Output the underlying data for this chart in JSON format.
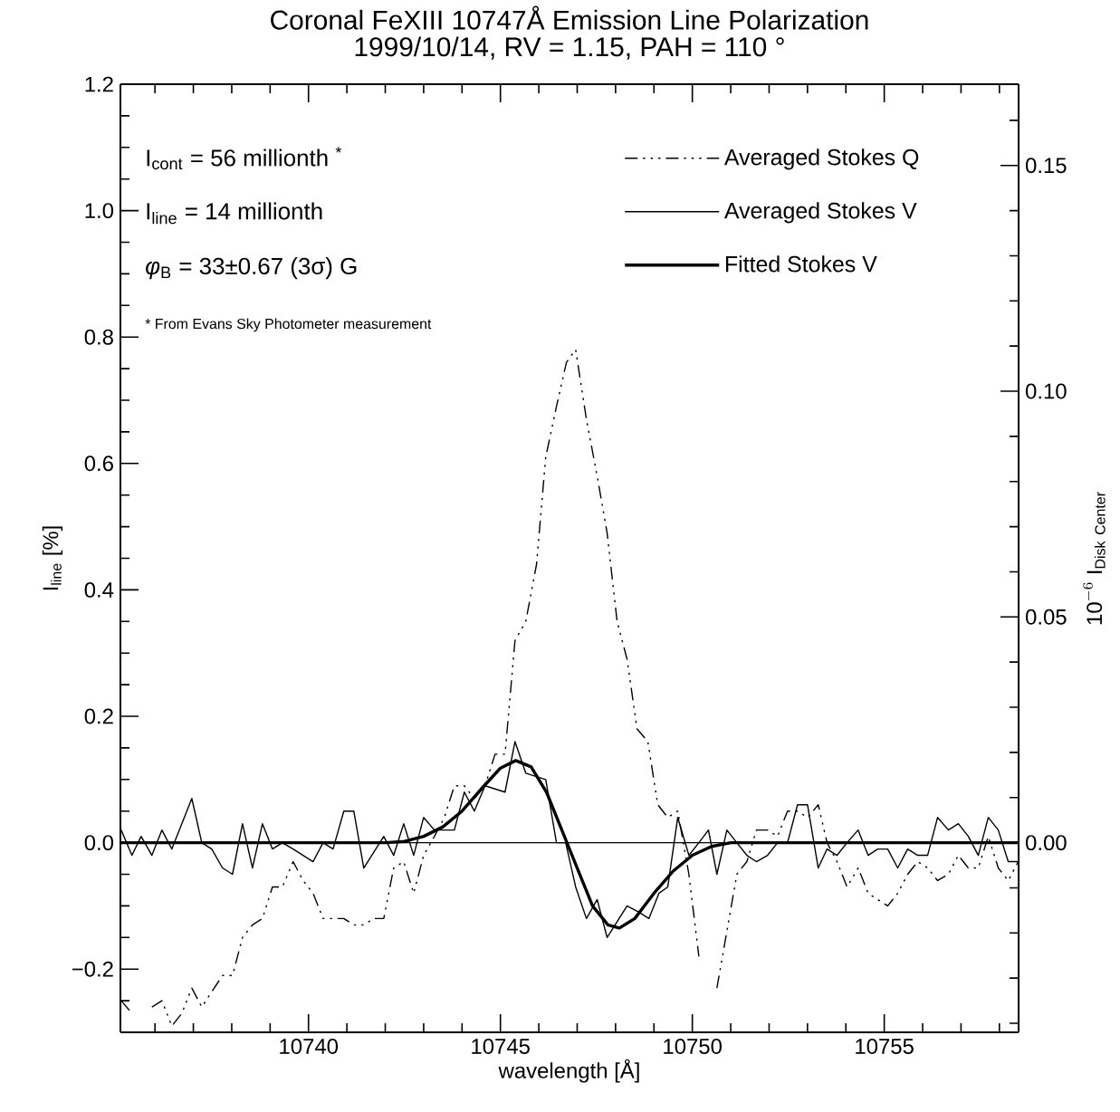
{
  "chart_data": {
    "type": "line",
    "title": "Coronal FeXIII 10747Å Emission Line Polarization",
    "subtitle": "1999/10/14, RV = 1.15, PAH = 110 °",
    "xlabel": "wavelength [Å]",
    "ylabel": "I$_{line}$ [%]",
    "y2label": "\\mathrm{10}^{-6}\\ \\mathrm{I}_{\\mathrm{Disk\\ Center}}",
    "annotations": [
      "I$_{cont}$ = 56 millionth $^{*}$",
      "I$_{line}$ = 14 millionth",
      "*φ*$_{B}$ = 33±0.67 (3σ) G",
      "* From Evans Sky Photometer measurement"
    ],
    "xlim": [
      10735.1,
      10758.5
    ],
    "xticks": [
      10740,
      10745,
      10750,
      10755,
      {
        "value": 10736,
        "label": null
      },
      {
        "value": 10737,
        "label": null
      },
      {
        "value": 10738,
        "label": null
      },
      {
        "value": 10739,
        "label": null
      },
      {
        "value": 10741,
        "label": null
      },
      {
        "value": 10742,
        "label": null
      },
      {
        "value": 10743,
        "label": null
      },
      {
        "value": 10744,
        "label": null
      },
      {
        "value": 10746,
        "label": null
      },
      {
        "value": 10747,
        "label": null
      },
      {
        "value": 10748,
        "label": null
      },
      {
        "value": 10749,
        "label": null
      },
      {
        "value": 10751,
        "label": null
      },
      {
        "value": 10752,
        "label": null
      },
      {
        "value": 10753,
        "label": null
      },
      {
        "value": 10754,
        "label": null
      },
      {
        "value": 10756,
        "label": null
      },
      {
        "value": 10757,
        "label": null
      },
      {
        "value": 10758,
        "label": null
      }
    ],
    "ylim": [
      -0.3,
      1.2
    ],
    "yticks": [
      {
        "value": -0.2,
        "label": "−0.2"
      },
      {
        "value": 0,
        "label": "0.0"
      },
      {
        "value": 0.2,
        "label": "0.2"
      },
      {
        "value": 0.4,
        "label": "0.4"
      },
      {
        "value": 0.6,
        "label": "0.6"
      },
      {
        "value": 0.8,
        "label": "0.8"
      },
      {
        "value": 1.0,
        "label": "1.0"
      },
      {
        "value": 1.2,
        "label": "1.2"
      },
      {
        "value": -0.25,
        "label": null
      },
      {
        "value": -0.15,
        "label": null
      },
      {
        "value": -0.1,
        "label": null
      },
      {
        "value": -0.05,
        "label": null
      },
      {
        "value": 0.05,
        "label": null
      },
      {
        "value": 0.1,
        "label": null
      },
      {
        "value": 0.15,
        "label": null
      },
      {
        "value": 0.25,
        "label": null
      },
      {
        "value": 0.3,
        "label": null
      },
      {
        "value": 0.35,
        "label": null
      },
      {
        "value": 0.45,
        "label": null
      },
      {
        "value": 0.5,
        "label": null
      },
      {
        "value": 0.55,
        "label": null
      },
      {
        "value": 0.65,
        "label": null
      },
      {
        "value": 0.7,
        "label": null
      },
      {
        "value": 0.75,
        "label": null
      },
      {
        "value": 0.85,
        "label": null
      },
      {
        "value": 0.9,
        "label": null
      },
      {
        "value": 0.95,
        "label": null
      },
      {
        "value": 1.05,
        "label": null
      },
      {
        "value": 1.1,
        "label": null
      },
      {
        "value": 1.15,
        "label": null
      }
    ],
    "y2lim": [
      -0.042,
      0.168
    ],
    "y2ticks": [
      {
        "value": 0,
        "label": "0.00"
      },
      {
        "value": 0.05,
        "label": "0.05"
      },
      {
        "value": 0.1,
        "label": "0.10"
      },
      {
        "value": 0.15,
        "label": "0.15"
      },
      {
        "value": -0.04,
        "label": null
      },
      {
        "value": -0.03,
        "label": null
      },
      {
        "value": -0.02,
        "label": null
      },
      {
        "value": -0.01,
        "label": null
      },
      {
        "value": 0.01,
        "label": null
      },
      {
        "value": 0.02,
        "label": null
      },
      {
        "value": 0.03,
        "label": null
      },
      {
        "value": 0.04,
        "label": null
      },
      {
        "value": 0.06,
        "label": null
      },
      {
        "value": 0.07,
        "label": null
      },
      {
        "value": 0.08,
        "label": null
      },
      {
        "value": 0.09,
        "label": null
      },
      {
        "value": 0.11,
        "label": null
      },
      {
        "value": 0.12,
        "label": null
      },
      {
        "value": 0.13,
        "label": null
      },
      {
        "value": 0.14,
        "label": null
      },
      {
        "value": 0.16,
        "label": null
      }
    ],
    "ref_lines": [
      {
        "axis": "y",
        "value": 0,
        "color": "#000000",
        "line_style": "solid"
      }
    ],
    "legend": "top right",
    "grid": false,
    "series": [
      {
        "name": "Averaged Stokes Q",
        "color": "#000000",
        "line_style": "dashed",
        "x": [
          10735.12,
          10735.4,
          10735.59,
          10735.92,
          10736.18,
          10736.44,
          10736.7,
          10736.96,
          10737.22,
          10737.76,
          10738.02,
          10738.28,
          10738.54,
          10738.8,
          10739.06,
          10739.32,
          10739.6,
          10739.86,
          10740.12,
          10740.38,
          10740.64,
          10740.92,
          10741.18,
          10741.44,
          10741.7,
          10741.96,
          10742.22,
          10742.48,
          10742.74,
          10743.0,
          10743.28,
          10743.54,
          10743.8,
          10744.06,
          10744.32,
          10744.6,
          10744.86,
          10745.12,
          10745.38,
          10745.66,
          10745.94,
          10746.18,
          10746.46,
          10746.72,
          10746.96,
          10747.24,
          10747.52,
          10747.78,
          10748.04,
          10748.3,
          10748.56,
          10748.84,
          10749.1,
          10749.36,
          10749.62,
          10749.91,
          10750.17,
          10750.42,
          10750.64,
          10750.9,
          10751.16,
          10751.42,
          10751.67,
          10751.96,
          10752.22,
          10752.48,
          10752.74,
          10753.0,
          10753.28,
          10753.51,
          10753.77,
          10754.03,
          10754.32,
          10754.58,
          10754.83,
          10755.09,
          10755.35,
          10755.61,
          10755.87,
          10756.13,
          10756.39,
          10756.67,
          10756.93,
          10757.19,
          10757.45,
          10757.71,
          10757.97,
          10758.23,
          10758.49
        ],
        "values": [
          -0.25,
          -0.27,
          null,
          -0.26,
          -0.25,
          -0.29,
          -0.27,
          -0.23,
          -0.26,
          -0.21,
          -0.21,
          -0.15,
          -0.13,
          -0.12,
          -0.07,
          -0.07,
          -0.03,
          -0.06,
          -0.08,
          -0.12,
          -0.12,
          -0.12,
          -0.13,
          -0.13,
          -0.12,
          -0.12,
          -0.04,
          -0.03,
          -0.08,
          -0.02,
          0.01,
          0.04,
          0.09,
          0.09,
          0.07,
          0.09,
          0.14,
          0.14,
          0.32,
          0.35,
          0.44,
          0.61,
          0.69,
          0.76,
          0.78,
          0.67,
          0.58,
          0.49,
          0.35,
          0.29,
          0.18,
          0.16,
          0.06,
          0.04,
          0.05,
          -0.05,
          -0.18,
          null,
          -0.23,
          -0.14,
          -0.05,
          -0.03,
          0.02,
          0.02,
          0.01,
          0.05,
          0.05,
          0.04,
          0.06,
          0.0,
          -0.03,
          -0.07,
          -0.04,
          -0.08,
          -0.09,
          -0.1,
          -0.08,
          -0.05,
          -0.03,
          -0.04,
          -0.06,
          -0.05,
          -0.02,
          -0.04,
          -0.04,
          0.01,
          -0.04,
          -0.06,
          -0.03
        ]
      },
      {
        "name": "Averaged Stokes V",
        "color": "#000000",
        "line_style": "solid",
        "x": [
          10735.12,
          10735.4,
          10735.64,
          10735.92,
          10736.18,
          10736.44,
          10736.96,
          10737.22,
          10737.48,
          10737.76,
          10738.02,
          10738.28,
          10738.54,
          10738.8,
          10739.06,
          10739.32,
          10739.6,
          10739.86,
          10740.12,
          10740.38,
          10740.64,
          10740.92,
          10741.18,
          10741.44,
          10741.96,
          10742.22,
          10742.48,
          10742.74,
          10743.0,
          10743.28,
          10743.8,
          10744.06,
          10744.32,
          10744.6,
          10745.12,
          10745.38,
          10745.66,
          10746.18,
          10746.46,
          10746.7,
          10746.96,
          10747.24,
          10747.52,
          10747.78,
          10748.3,
          10748.61,
          10748.87,
          10749.13,
          10749.36,
          10749.62,
          10749.91,
          10750.17,
          10750.42,
          10750.64,
          10750.9,
          10751.16,
          10751.42,
          10751.67,
          10751.96,
          10752.22,
          10752.48,
          10752.74,
          10753.0,
          10753.28,
          10753.51,
          10753.77,
          10754.03,
          10754.32,
          10754.58,
          10754.83,
          10755.09,
          10755.35,
          10755.61,
          10755.87,
          10756.13,
          10756.39,
          10756.67,
          10756.93,
          10757.19,
          10757.45,
          10757.71,
          10757.97,
          10758.23,
          10758.49
        ],
        "values": [
          0.02,
          -0.02,
          0.01,
          -0.02,
          0.02,
          -0.01,
          0.07,
          0.0,
          -0.01,
          -0.04,
          -0.05,
          0.03,
          -0.04,
          0.03,
          -0.01,
          0.0,
          -0.01,
          -0.02,
          -0.03,
          0.0,
          -0.01,
          0.05,
          0.05,
          -0.04,
          0.01,
          -0.02,
          0.03,
          -0.02,
          0.04,
          0.02,
          0.02,
          0.08,
          0.05,
          0.09,
          0.08,
          0.16,
          0.11,
          0.1,
          0.0,
          0.0,
          -0.07,
          -0.12,
          -0.09,
          -0.15,
          -0.1,
          -0.11,
          -0.12,
          -0.08,
          -0.07,
          0.04,
          -0.02,
          0.0,
          0.02,
          -0.05,
          0.02,
          0.0,
          -0.02,
          -0.03,
          -0.02,
          0.0,
          0.0,
          0.06,
          0.06,
          -0.04,
          -0.01,
          -0.02,
          0.0,
          0.02,
          -0.02,
          -0.01,
          -0.01,
          -0.04,
          -0.01,
          -0.02,
          -0.02,
          0.04,
          0.02,
          0.03,
          0.01,
          -0.02,
          0.04,
          0.02,
          -0.03,
          -0.03
        ]
      },
      {
        "name": "Fitted Stokes V",
        "color": "#000000",
        "line_style": "solid",
        "x": [
          10735.12,
          10742.0,
          10742.5,
          10743.0,
          10743.5,
          10744.0,
          10744.5,
          10745.0,
          10745.4,
          10745.8,
          10746.2,
          10746.6,
          10747.0,
          10747.4,
          10747.8,
          10748.1,
          10748.5,
          10749.0,
          10749.5,
          10750.0,
          10750.5,
          10751.0,
          10758.49
        ],
        "values": [
          0,
          0,
          0.002,
          0.01,
          0.025,
          0.05,
          0.085,
          0.118,
          0.13,
          0.12,
          0.08,
          0.02,
          -0.04,
          -0.1,
          -0.13,
          -0.135,
          -0.12,
          -0.08,
          -0.045,
          -0.02,
          -0.006,
          0,
          0
        ]
      }
    ]
  }
}
